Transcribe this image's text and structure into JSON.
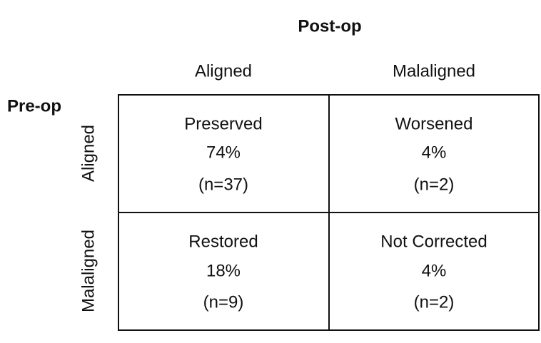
{
  "column_header": "Post-op",
  "row_header": "Pre-op",
  "columns": [
    "Aligned",
    "Malaligned"
  ],
  "rows": [
    {
      "label": "Aligned",
      "cells": [
        {
          "outcome": "Preserved",
          "percent": "74%",
          "count": "(n=37)"
        },
        {
          "outcome": "Worsened",
          "percent": "4%",
          "count": "(n=2)"
        }
      ]
    },
    {
      "label": "Malaligned",
      "cells": [
        {
          "outcome": "Restored",
          "percent": "18%",
          "count": "(n=9)"
        },
        {
          "outcome": "Not Corrected",
          "percent": "4%",
          "count": "(n=2)"
        }
      ]
    }
  ]
}
